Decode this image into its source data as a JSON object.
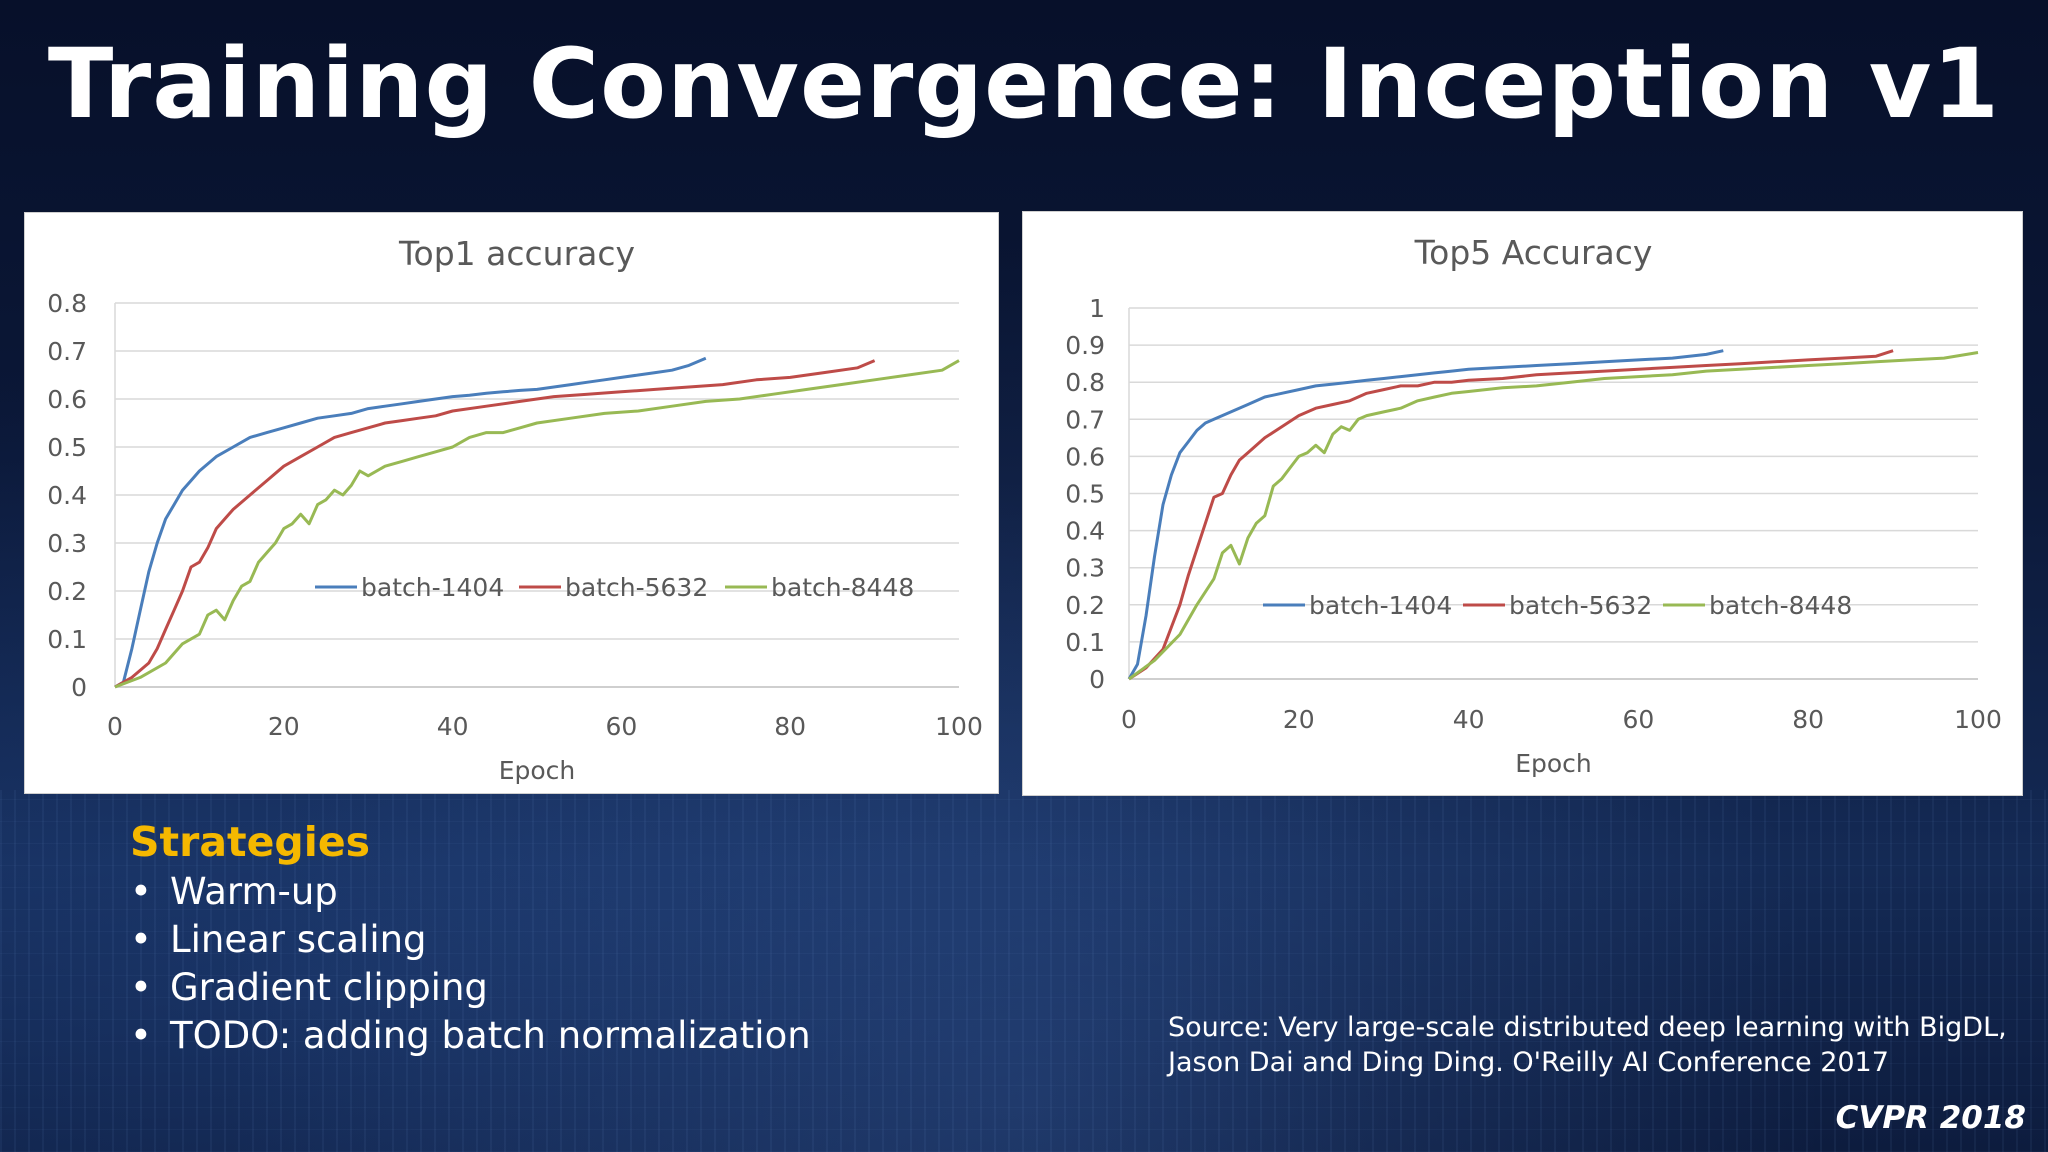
{
  "slide": {
    "title": "Training Convergence: Inception v1",
    "strategies_heading": "Strategies",
    "strategies": [
      "Warm-up",
      "Linear scaling",
      "Gradient clipping",
      "TODO: adding batch normalization"
    ],
    "source_lines": [
      "Source: Very large-scale distributed deep learning with BigDL,",
      "Jason Dai and Ding Ding. O'Reilly AI Conference 2017"
    ],
    "conference": "CVPR 2018"
  },
  "colors": {
    "batch-1404": "#4a7ebb",
    "batch-5632": "#be4b48",
    "batch-8448": "#98b954",
    "gridline": "#d9d9d9",
    "axis_text": "#595959",
    "title_text": "#595959",
    "strategies_heading": "#f5b800"
  },
  "chart_data": [
    {
      "id": "top1",
      "type": "line",
      "title": "Top1 accuracy",
      "xlabel": "Epoch",
      "ylabel": "",
      "xlim": [
        0,
        100
      ],
      "ylim": [
        0,
        0.8
      ],
      "xticks": [
        0,
        20,
        40,
        60,
        80,
        100
      ],
      "yticks": [
        0,
        0.1,
        0.2,
        0.3,
        0.4,
        0.5,
        0.6,
        0.7,
        0.8
      ],
      "grid": true,
      "legend": "center-right",
      "series": [
        {
          "name": "batch-1404",
          "x": [
            0,
            1,
            2,
            3,
            4,
            5,
            6,
            7,
            8,
            9,
            10,
            12,
            14,
            16,
            18,
            20,
            22,
            24,
            26,
            28,
            30,
            32,
            34,
            36,
            38,
            40,
            42,
            44,
            46,
            48,
            50,
            52,
            54,
            56,
            58,
            60,
            62,
            64,
            66,
            68,
            70
          ],
          "y": [
            0.0,
            0.01,
            0.08,
            0.16,
            0.24,
            0.3,
            0.35,
            0.38,
            0.41,
            0.43,
            0.45,
            0.48,
            0.5,
            0.52,
            0.53,
            0.54,
            0.55,
            0.56,
            0.565,
            0.57,
            0.58,
            0.585,
            0.59,
            0.595,
            0.6,
            0.605,
            0.608,
            0.612,
            0.615,
            0.618,
            0.62,
            0.625,
            0.63,
            0.635,
            0.64,
            0.645,
            0.65,
            0.655,
            0.66,
            0.67,
            0.685
          ]
        },
        {
          "name": "batch-5632",
          "x": [
            0,
            2,
            4,
            5,
            6,
            7,
            8,
            9,
            10,
            11,
            12,
            13,
            14,
            16,
            18,
            20,
            22,
            24,
            26,
            28,
            30,
            32,
            34,
            36,
            38,
            40,
            44,
            48,
            52,
            56,
            60,
            64,
            68,
            72,
            76,
            80,
            84,
            88,
            90
          ],
          "y": [
            0.0,
            0.02,
            0.05,
            0.08,
            0.12,
            0.16,
            0.2,
            0.25,
            0.26,
            0.29,
            0.33,
            0.35,
            0.37,
            0.4,
            0.43,
            0.46,
            0.48,
            0.5,
            0.52,
            0.53,
            0.54,
            0.55,
            0.555,
            0.56,
            0.565,
            0.575,
            0.585,
            0.595,
            0.605,
            0.61,
            0.615,
            0.62,
            0.625,
            0.63,
            0.64,
            0.645,
            0.655,
            0.665,
            0.68
          ]
        },
        {
          "name": "batch-8448",
          "x": [
            0,
            3,
            6,
            8,
            10,
            11,
            12,
            13,
            14,
            15,
            16,
            17,
            18,
            19,
            20,
            21,
            22,
            23,
            24,
            25,
            26,
            27,
            28,
            29,
            30,
            32,
            34,
            36,
            38,
            40,
            42,
            44,
            46,
            48,
            50,
            54,
            58,
            62,
            66,
            70,
            74,
            78,
            82,
            86,
            90,
            94,
            98,
            100
          ],
          "y": [
            0.0,
            0.02,
            0.05,
            0.09,
            0.11,
            0.15,
            0.16,
            0.14,
            0.18,
            0.21,
            0.22,
            0.26,
            0.28,
            0.3,
            0.33,
            0.34,
            0.36,
            0.34,
            0.38,
            0.39,
            0.41,
            0.4,
            0.42,
            0.45,
            0.44,
            0.46,
            0.47,
            0.48,
            0.49,
            0.5,
            0.52,
            0.53,
            0.53,
            0.54,
            0.55,
            0.56,
            0.57,
            0.575,
            0.585,
            0.595,
            0.6,
            0.61,
            0.62,
            0.63,
            0.64,
            0.65,
            0.66,
            0.68
          ]
        }
      ]
    },
    {
      "id": "top5",
      "type": "line",
      "title": "Top5 Accuracy",
      "xlabel": "Epoch",
      "ylabel": "",
      "xlim": [
        0,
        100
      ],
      "ylim": [
        0,
        1
      ],
      "xticks": [
        0,
        20,
        40,
        60,
        80,
        100
      ],
      "yticks": [
        0,
        0.1,
        0.2,
        0.3,
        0.4,
        0.5,
        0.6,
        0.7,
        0.8,
        0.9,
        1
      ],
      "grid": true,
      "legend": "center-right",
      "series": [
        {
          "name": "batch-1404",
          "x": [
            0,
            1,
            2,
            3,
            4,
            5,
            6,
            7,
            8,
            9,
            10,
            12,
            14,
            16,
            18,
            20,
            22,
            24,
            26,
            28,
            30,
            32,
            34,
            36,
            38,
            40,
            44,
            48,
            52,
            56,
            60,
            64,
            68,
            70
          ],
          "y": [
            0.0,
            0.04,
            0.17,
            0.33,
            0.47,
            0.55,
            0.61,
            0.64,
            0.67,
            0.69,
            0.7,
            0.72,
            0.74,
            0.76,
            0.77,
            0.78,
            0.79,
            0.795,
            0.8,
            0.805,
            0.81,
            0.815,
            0.82,
            0.825,
            0.83,
            0.835,
            0.84,
            0.845,
            0.85,
            0.855,
            0.86,
            0.865,
            0.875,
            0.885
          ]
        },
        {
          "name": "batch-5632",
          "x": [
            0,
            2,
            4,
            5,
            6,
            7,
            8,
            9,
            10,
            11,
            12,
            13,
            14,
            16,
            18,
            20,
            22,
            24,
            26,
            28,
            30,
            32,
            34,
            36,
            38,
            40,
            44,
            48,
            52,
            56,
            60,
            64,
            68,
            72,
            76,
            80,
            84,
            88,
            90
          ],
          "y": [
            0.0,
            0.03,
            0.08,
            0.14,
            0.2,
            0.28,
            0.35,
            0.42,
            0.49,
            0.5,
            0.55,
            0.59,
            0.61,
            0.65,
            0.68,
            0.71,
            0.73,
            0.74,
            0.75,
            0.77,
            0.78,
            0.79,
            0.79,
            0.8,
            0.8,
            0.805,
            0.81,
            0.82,
            0.825,
            0.83,
            0.835,
            0.84,
            0.845,
            0.85,
            0.855,
            0.86,
            0.865,
            0.87,
            0.885
          ]
        },
        {
          "name": "batch-8448",
          "x": [
            0,
            3,
            6,
            8,
            10,
            11,
            12,
            13,
            14,
            15,
            16,
            17,
            18,
            19,
            20,
            21,
            22,
            23,
            24,
            25,
            26,
            27,
            28,
            30,
            32,
            34,
            36,
            38,
            40,
            44,
            48,
            52,
            56,
            60,
            64,
            68,
            72,
            76,
            80,
            84,
            88,
            92,
            96,
            100
          ],
          "y": [
            0.0,
            0.05,
            0.12,
            0.2,
            0.27,
            0.34,
            0.36,
            0.31,
            0.38,
            0.42,
            0.44,
            0.52,
            0.54,
            0.57,
            0.6,
            0.61,
            0.63,
            0.61,
            0.66,
            0.68,
            0.67,
            0.7,
            0.71,
            0.72,
            0.73,
            0.75,
            0.76,
            0.77,
            0.775,
            0.785,
            0.79,
            0.8,
            0.81,
            0.815,
            0.82,
            0.83,
            0.835,
            0.84,
            0.845,
            0.85,
            0.855,
            0.86,
            0.865,
            0.88
          ]
        }
      ]
    }
  ]
}
